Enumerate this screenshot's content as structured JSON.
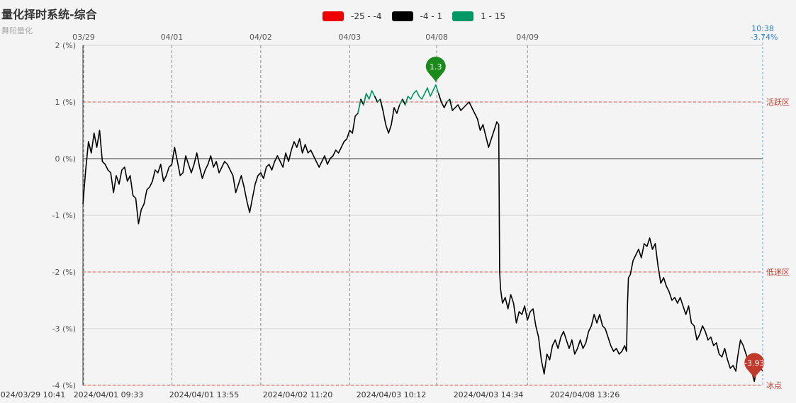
{
  "header": {
    "title": "量化择时系统-综合",
    "subtitle": "舞阳量化"
  },
  "legend": [
    {
      "label": "-25 - -4",
      "color": "#ee0000"
    },
    {
      "label": "-4 - 1",
      "color": "#000000"
    },
    {
      "label": "1 - 15",
      "color": "#009966"
    }
  ],
  "chart_data": {
    "type": "line",
    "ylim": [
      -4,
      2
    ],
    "yticks": [
      2,
      1,
      0,
      -1,
      -2,
      -3,
      -4
    ],
    "ytick_labels": [
      "2 (%)",
      "1 (%)",
      "0 (%)",
      "-1 (%)",
      "-2 (%)",
      "-3 (%)",
      "-4 (%)"
    ],
    "top_labels": [
      "03/29",
      "04/01",
      "04/02",
      "04/03",
      "04/08",
      "04/09"
    ],
    "bottom_labels": [
      "2024/03/29 10:41",
      "2024/04/01 09:33",
      "2024/04/01 13:55",
      "2024/04/02 11:20",
      "2024/04/03 10:12",
      "2024/04/03 14:34",
      "2024/04/08 13:26"
    ],
    "last_time": "10:38",
    "last_value_label": "-3.74%",
    "mark_lines": [
      {
        "value": 1,
        "label": "活跃区"
      },
      {
        "value": -2,
        "label": "低迷区"
      },
      {
        "value": -4,
        "label": "冰点"
      }
    ],
    "max_point": {
      "value": 1.3,
      "label": "1.3"
    },
    "min_point": {
      "value": -3.93,
      "label": "-3.93"
    },
    "visual_map": [
      {
        "min": -25,
        "max": -4,
        "color": "#ee0000"
      },
      {
        "min": -4,
        "max": 1,
        "color": "#000000"
      },
      {
        "min": 1,
        "max": 15,
        "color": "#009966"
      }
    ],
    "series": [
      {
        "points": [
          [
            0,
            -0.8
          ],
          [
            1.5,
            -0.2
          ],
          [
            3,
            0.3
          ],
          [
            4.5,
            0.1
          ],
          [
            6,
            0.45
          ],
          [
            7.5,
            0.2
          ],
          [
            9,
            0.5
          ],
          [
            10.5,
            -0.05
          ],
          [
            12,
            -0.1
          ],
          [
            13.5,
            -0.2
          ],
          [
            15,
            -0.25
          ],
          [
            16.5,
            -0.6
          ],
          [
            18,
            -0.3
          ],
          [
            19.5,
            -0.45
          ],
          [
            21,
            -0.2
          ],
          [
            22.5,
            -0.15
          ],
          [
            24,
            -0.4
          ],
          [
            25.5,
            -0.3
          ],
          [
            27,
            -0.65
          ],
          [
            28.5,
            -0.7
          ],
          [
            30,
            -1.15
          ],
          [
            31.5,
            -0.9
          ],
          [
            33,
            -0.8
          ],
          [
            34.5,
            -0.55
          ],
          [
            36,
            -0.5
          ],
          [
            37.5,
            -0.4
          ],
          [
            39,
            -0.2
          ],
          [
            40.5,
            -0.25
          ],
          [
            42,
            -0.1
          ],
          [
            43.5,
            -0.4
          ],
          [
            45,
            -0.3
          ],
          [
            46.5,
            -0.15
          ],
          [
            48,
            -0.1
          ],
          [
            49.5,
            0.2
          ],
          [
            51,
            -0.05
          ],
          [
            52.5,
            -0.3
          ],
          [
            54,
            -0.25
          ],
          [
            55.5,
            0.05
          ],
          [
            57,
            -0.1
          ],
          [
            58.5,
            -0.25
          ],
          [
            60,
            -0.1
          ],
          [
            61.5,
            0.1
          ],
          [
            63,
            -0.15
          ],
          [
            64.5,
            -0.35
          ],
          [
            66,
            -0.2
          ],
          [
            67.5,
            -0.1
          ],
          [
            69,
            0.05
          ],
          [
            70.5,
            -0.15
          ],
          [
            72,
            -0.05
          ],
          [
            73.5,
            -0.25
          ],
          [
            75,
            -0.15
          ],
          [
            76.5,
            -0.05
          ],
          [
            78,
            -0.1
          ],
          [
            79.5,
            -0.2
          ],
          [
            81,
            -0.3
          ],
          [
            82.5,
            -0.6
          ],
          [
            84,
            -0.45
          ],
          [
            85.5,
            -0.3
          ],
          [
            87,
            -0.5
          ],
          [
            88.5,
            -0.75
          ],
          [
            90,
            -0.95
          ],
          [
            91.5,
            -0.7
          ],
          [
            93,
            -0.45
          ],
          [
            94.5,
            -0.3
          ],
          [
            96,
            -0.25
          ],
          [
            97.5,
            -0.35
          ],
          [
            99,
            -0.15
          ],
          [
            100.5,
            -0.1
          ],
          [
            102,
            -0.2
          ],
          [
            103.5,
            -0.05
          ],
          [
            105,
            0.05
          ],
          [
            106.5,
            -0.05
          ],
          [
            108,
            -0.15
          ],
          [
            109.5,
            0.1
          ],
          [
            111,
            -0.05
          ],
          [
            112.5,
            0.15
          ],
          [
            114,
            0.3
          ],
          [
            115.5,
            0.2
          ],
          [
            117,
            0.35
          ],
          [
            118.5,
            0.1
          ],
          [
            120,
            0.25
          ],
          [
            121.5,
            0.1
          ],
          [
            123,
            0.15
          ],
          [
            124.5,
            0.05
          ],
          [
            126,
            -0.05
          ],
          [
            127.5,
            -0.15
          ],
          [
            129,
            -0.05
          ],
          [
            130.5,
            0.05
          ],
          [
            132,
            -0.1
          ],
          [
            133.5,
            0
          ],
          [
            135,
            0.05
          ],
          [
            136.5,
            0.15
          ],
          [
            138,
            0.1
          ],
          [
            139.5,
            0.2
          ],
          [
            141,
            0.3
          ],
          [
            142.5,
            0.35
          ],
          [
            144,
            0.5
          ],
          [
            145.5,
            0.45
          ],
          [
            147,
            0.75
          ],
          [
            148.5,
            0.8
          ],
          [
            150,
            1.05
          ],
          [
            151.5,
            0.95
          ],
          [
            153,
            1.15
          ],
          [
            154.5,
            1.05
          ],
          [
            156,
            1.2
          ],
          [
            157.5,
            1.1
          ],
          [
            159,
            1.0
          ],
          [
            160.5,
            1.05
          ],
          [
            162,
            0.85
          ],
          [
            163.5,
            0.6
          ],
          [
            165,
            0.45
          ],
          [
            166.5,
            0.6
          ],
          [
            168,
            0.9
          ],
          [
            169.5,
            0.8
          ],
          [
            171,
            0.95
          ],
          [
            172.5,
            1.05
          ],
          [
            174,
            0.95
          ],
          [
            175.5,
            1.1
          ],
          [
            177,
            1.05
          ],
          [
            178.5,
            1.15
          ],
          [
            180,
            1.2
          ],
          [
            181.5,
            1.1
          ],
          [
            183,
            1.05
          ],
          [
            184.5,
            1.15
          ],
          [
            186,
            1.25
          ],
          [
            187.5,
            1.1
          ],
          [
            189,
            1.2
          ],
          [
            190.5,
            1.3
          ],
          [
            192,
            1.15
          ],
          [
            193.5,
            1.0
          ],
          [
            195,
            0.9
          ],
          [
            196.5,
            1.0
          ],
          [
            198,
            1.05
          ],
          [
            199.5,
            0.85
          ],
          [
            201,
            0.9
          ],
          [
            202.5,
            0.95
          ],
          [
            204,
            0.85
          ],
          [
            205.5,
            0.9
          ],
          [
            207,
            0.95
          ],
          [
            208.5,
            1.0
          ],
          [
            210,
            0.9
          ],
          [
            211.5,
            0.8
          ],
          [
            213,
            0.7
          ],
          [
            214.5,
            0.5
          ],
          [
            216,
            0.6
          ],
          [
            217.5,
            0.4
          ],
          [
            219,
            0.2
          ],
          [
            220.5,
            0.35
          ],
          [
            222,
            0.5
          ],
          [
            223.5,
            0.65
          ],
          [
            224.5,
            0.6
          ],
          [
            225,
            -2.0
          ],
          [
            225.5,
            -2.3
          ],
          [
            226.5,
            -2.55
          ],
          [
            228,
            -2.45
          ],
          [
            229.5,
            -2.65
          ],
          [
            231,
            -2.4
          ],
          [
            232.5,
            -2.55
          ],
          [
            234,
            -2.9
          ],
          [
            235.5,
            -2.7
          ],
          [
            237,
            -2.75
          ],
          [
            238.5,
            -2.6
          ],
          [
            240,
            -2.85
          ],
          [
            241.5,
            -2.7
          ],
          [
            243,
            -2.65
          ],
          [
            244.5,
            -2.95
          ],
          [
            246,
            -3.15
          ],
          [
            247.5,
            -3.55
          ],
          [
            249,
            -3.8
          ],
          [
            250.5,
            -3.45
          ],
          [
            252,
            -3.55
          ],
          [
            253.5,
            -3.3
          ],
          [
            255,
            -3.2
          ],
          [
            256.5,
            -3.35
          ],
          [
            258,
            -3.15
          ],
          [
            259.5,
            -3.05
          ],
          [
            261,
            -3.2
          ],
          [
            262.5,
            -3.35
          ],
          [
            264,
            -3.2
          ],
          [
            265.5,
            -3.45
          ],
          [
            267,
            -3.35
          ],
          [
            268.5,
            -3.2
          ],
          [
            270,
            -3.35
          ],
          [
            271.5,
            -3.25
          ],
          [
            273,
            -3.05
          ],
          [
            274.5,
            -2.95
          ],
          [
            276,
            -2.75
          ],
          [
            277.5,
            -2.9
          ],
          [
            279,
            -2.75
          ],
          [
            280.5,
            -2.95
          ],
          [
            282,
            -3.0
          ],
          [
            283.5,
            -3.15
          ],
          [
            285,
            -3.3
          ],
          [
            286.5,
            -3.4
          ],
          [
            288,
            -3.35
          ],
          [
            289.5,
            -3.45
          ],
          [
            291,
            -3.4
          ],
          [
            292.5,
            -3.3
          ],
          [
            293.5,
            -3.4
          ],
          [
            294,
            -2.6
          ],
          [
            294.5,
            -2.1
          ],
          [
            295.5,
            -2.05
          ],
          [
            297,
            -1.8
          ],
          [
            298.5,
            -1.7
          ],
          [
            300,
            -1.6
          ],
          [
            301.5,
            -1.75
          ],
          [
            303,
            -1.5
          ],
          [
            304.5,
            -1.55
          ],
          [
            306,
            -1.4
          ],
          [
            307.5,
            -1.6
          ],
          [
            309,
            -1.5
          ],
          [
            310.5,
            -1.9
          ],
          [
            312,
            -2.2
          ],
          [
            313.5,
            -2.1
          ],
          [
            315,
            -2.25
          ],
          [
            316.5,
            -2.35
          ],
          [
            318,
            -2.5
          ],
          [
            319.5,
            -2.45
          ],
          [
            321,
            -2.55
          ],
          [
            322.5,
            -2.45
          ],
          [
            324,
            -2.6
          ],
          [
            325.5,
            -2.75
          ],
          [
            327,
            -2.6
          ],
          [
            328.5,
            -2.9
          ],
          [
            330,
            -2.95
          ],
          [
            331.5,
            -3.2
          ],
          [
            333,
            -3.1
          ],
          [
            334.5,
            -2.95
          ],
          [
            336,
            -3.05
          ],
          [
            337.5,
            -3.2
          ],
          [
            339,
            -3.15
          ],
          [
            340.5,
            -3.3
          ],
          [
            342,
            -3.25
          ],
          [
            343.5,
            -3.45
          ],
          [
            345,
            -3.5
          ],
          [
            346.5,
            -3.35
          ],
          [
            348,
            -3.55
          ],
          [
            349.5,
            -3.7
          ],
          [
            351,
            -3.65
          ],
          [
            352.5,
            -3.75
          ],
          [
            353.5,
            -3.5
          ],
          [
            355,
            -3.2
          ],
          [
            356.5,
            -3.3
          ],
          [
            358,
            -3.45
          ],
          [
            359.5,
            -3.6
          ],
          [
            361,
            -3.75
          ],
          [
            362.5,
            -3.93
          ],
          [
            364,
            -3.65
          ],
          [
            365.5,
            -3.7
          ],
          [
            367,
            -3.74
          ]
        ]
      }
    ]
  }
}
